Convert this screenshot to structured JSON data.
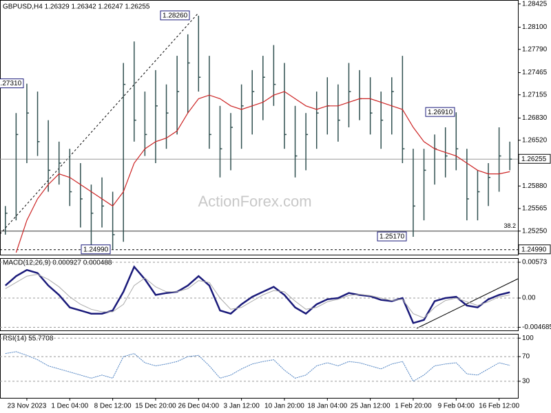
{
  "watermark": "ActionForex.com",
  "chart_data": [
    {
      "type": "ohlc",
      "title": "GBPUSD,H4 1.26329 1.26342 1.26247 1.26255",
      "color": "#2f4f4f",
      "categories": [
        null,
        null,
        "23 Nov 2023",
        null,
        null,
        null,
        "1 Dec 04:00",
        null,
        null,
        null,
        "8 Dec 12:00",
        null,
        null,
        null,
        "15 Dec 20:00",
        null,
        null,
        null,
        "26 Dec 04:00",
        null,
        null,
        null,
        "3 Jan 12:00",
        null,
        null,
        null,
        "10 Jan 20:00",
        null,
        null,
        null,
        "18 Jan 04:00",
        null,
        null,
        null,
        "25 Jan 12:00",
        null,
        null,
        null,
        "1 Feb 20:00",
        null,
        null,
        null,
        "9 Feb 04:00",
        null,
        null,
        null,
        "16 Feb 12:00",
        null
      ],
      "high": [
        1.256,
        1.269,
        1.2731,
        1.272,
        1.268,
        1.265,
        1.264,
        1.262,
        1.259,
        1.26,
        1.258,
        1.276,
        1.279,
        1.272,
        1.275,
        1.273,
        1.277,
        1.28,
        1.2826,
        1.277,
        1.27,
        1.269,
        1.273,
        1.275,
        1.277,
        1.2785,
        1.276,
        1.27,
        1.269,
        1.272,
        1.274,
        1.273,
        1.276,
        1.275,
        1.274,
        1.272,
        1.274,
        1.277,
        1.264,
        1.264,
        1.266,
        1.267,
        1.2691,
        1.264,
        1.261,
        1.262,
        1.267,
        1.265
      ],
      "low": [
        1.252,
        1.254,
        1.262,
        1.263,
        1.258,
        1.259,
        1.256,
        1.253,
        1.2499,
        1.253,
        1.2499,
        1.251,
        1.265,
        1.263,
        1.262,
        1.264,
        1.266,
        1.269,
        1.272,
        1.264,
        1.26,
        1.261,
        1.264,
        1.266,
        1.268,
        1.27,
        1.264,
        1.26,
        1.261,
        1.264,
        1.266,
        1.265,
        1.267,
        1.268,
        1.266,
        1.264,
        1.266,
        1.262,
        1.2517,
        1.254,
        1.259,
        1.26,
        1.261,
        1.254,
        1.254,
        1.256,
        1.258,
        1.261
      ],
      "close": [
        1.255,
        1.266,
        1.269,
        1.265,
        1.261,
        1.262,
        1.258,
        1.257,
        1.255,
        1.256,
        1.252,
        1.273,
        1.268,
        1.266,
        1.27,
        1.269,
        1.272,
        1.276,
        1.274,
        1.266,
        1.264,
        1.267,
        1.27,
        1.272,
        1.274,
        1.273,
        1.266,
        1.263,
        1.266,
        1.269,
        1.27,
        1.268,
        1.272,
        1.271,
        1.269,
        1.268,
        1.272,
        1.264,
        1.256,
        1.261,
        1.264,
        1.263,
        1.264,
        1.257,
        1.258,
        1.26,
        1.263,
        1.26255
      ],
      "ma": {
        "color": "#cc2222",
        "values": [
          null,
          1.2495,
          1.254,
          1.257,
          1.259,
          1.2605,
          1.26,
          1.259,
          1.258,
          1.257,
          1.256,
          1.258,
          1.262,
          1.264,
          1.265,
          1.2655,
          1.2665,
          1.269,
          1.271,
          1.2715,
          1.271,
          1.27,
          1.2695,
          1.27,
          1.2705,
          1.2715,
          1.272,
          1.271,
          1.27,
          1.2695,
          1.27,
          1.27,
          1.2705,
          1.271,
          1.271,
          1.2705,
          1.27,
          1.2695,
          1.267,
          1.265,
          1.264,
          1.2635,
          1.263,
          1.262,
          1.261,
          1.2605,
          1.2605,
          1.2608
        ]
      },
      "ylim": [
        1.2492,
        1.2848
      ],
      "yticks": [
        {
          "value": 1.28425,
          "label": "1.28425"
        },
        {
          "value": 1.281,
          "label": "1.28100"
        },
        {
          "value": 1.2779,
          "label": "1.27790"
        },
        {
          "value": 1.27465,
          "label": "1.27465"
        },
        {
          "value": 1.27155,
          "label": "1.27155"
        },
        {
          "value": 1.2683,
          "label": "1.26830"
        },
        {
          "value": 1.2652,
          "label": "1.26520"
        },
        {
          "value": 1.2588,
          "label": "1.25880"
        },
        {
          "value": 1.25565,
          "label": "1.25565"
        },
        {
          "value": 1.2525,
          "label": "1.25250"
        }
      ],
      "levels": [
        {
          "value": 1.26255,
          "label": "1.26255"
        },
        {
          "value": 1.2499,
          "label": "1.24990"
        },
        {
          "value": 1.2525,
          "label": "38.2"
        }
      ],
      "annotations": [
        {
          "value": 1.2826,
          "label": "1.28260"
        },
        {
          "value": 1.2731,
          "label": "1.27310"
        },
        {
          "value": 1.2691,
          "label": "1.26910"
        },
        {
          "value": 1.2517,
          "label": "1.25170"
        },
        {
          "value": 1.2499,
          "label": "1.24990"
        }
      ]
    },
    {
      "type": "line",
      "title": "MACD(12,26,9) 0.000927 0.000488",
      "series": [
        {
          "color": "#1a1a7a",
          "values": [
            0.002,
            0.0035,
            0.0045,
            0.004,
            0.002,
            0.0005,
            -0.0015,
            -0.002,
            -0.0025,
            -0.0025,
            -0.002,
            0.001,
            0.005,
            0.003,
            0.0005,
            0.0008,
            0.001,
            0.002,
            0.0035,
            0.002,
            -0.002,
            -0.0025,
            -0.001,
            0.0002,
            0.001,
            0.0018,
            0.0005,
            -0.0015,
            -0.0025,
            -0.001,
            -0.0002,
            0,
            0.0008,
            0.0005,
            0.0003,
            -0.0003,
            -0.0005,
            0,
            -0.004,
            -0.0035,
            -0.0005,
            0,
            0.0002,
            -0.0012,
            -0.0015,
            -0.0002,
            0.0005,
            0.000927
          ]
        },
        {
          "color": "#aaaaaa",
          "values": [
            0.0015,
            0.0025,
            0.0035,
            0.0038,
            0.003,
            0.0018,
            0.0002,
            -0.001,
            -0.0018,
            -0.0022,
            -0.0022,
            -0.001,
            0.002,
            0.0032,
            0.0018,
            0.001,
            0.001,
            0.0015,
            0.0028,
            0.0025,
            0,
            -0.0018,
            -0.0015,
            -0.0005,
            0.0005,
            0.0012,
            0.001,
            -0.0005,
            -0.0018,
            -0.0015,
            -0.0006,
            -0.0002,
            0.0004,
            0.0006,
            0.0004,
            0,
            -0.0004,
            -0.0002,
            -0.0025,
            -0.0032,
            -0.0015,
            -0.0004,
            0,
            -0.0006,
            -0.0012,
            -0.0006,
            0.0002,
            0.000488
          ]
        }
      ],
      "ylim": [
        -0.00518,
        0.00639
      ],
      "yticks": [
        0.00573,
        {
          "value": 0,
          "label": "0.00"
        },
        -0.004685
      ]
    },
    {
      "type": "line",
      "title": "RSI(14) 55.7708",
      "color": "#4a7fc0",
      "values": [
        75,
        78,
        72,
        65,
        55,
        50,
        45,
        40,
        35,
        40,
        35,
        70,
        75,
        60,
        55,
        58,
        62,
        70,
        72,
        55,
        35,
        40,
        50,
        58,
        62,
        65,
        48,
        35,
        40,
        55,
        60,
        55,
        62,
        60,
        55,
        50,
        58,
        62,
        30,
        40,
        55,
        58,
        60,
        42,
        40,
        50,
        60,
        55.7708
      ],
      "ylim": [
        3,
        107
      ],
      "yticks": [
        100,
        70,
        30
      ]
    }
  ]
}
